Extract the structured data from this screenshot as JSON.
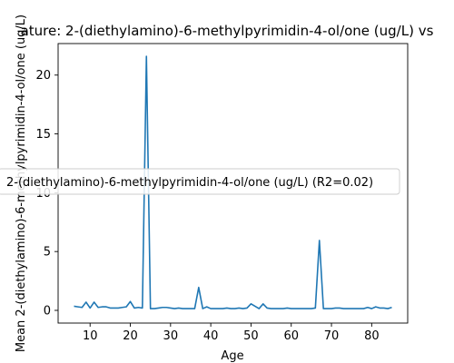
{
  "chart_data": {
    "type": "line",
    "title": "ature: 2-(diethylamino)-6-methylpyrimidin-4-ol/one (ug/L) vs",
    "xlabel": "Age",
    "ylabel": "Mean 2-(diethylamino)-6-methylpyrimidin-4-ol/one (ug/L)",
    "xlim": [
      2.05,
      88.95
    ],
    "ylim": [
      -1.08,
      22.68
    ],
    "xticks": [
      10,
      20,
      30,
      40,
      50,
      60,
      70,
      80
    ],
    "yticks": [
      0,
      5,
      10,
      15,
      20
    ],
    "grid": false,
    "legend_placement": "center-left",
    "series": [
      {
        "name": "2-(diethylamino)-6-methylpyrimidin-4-ol/one (ug/L) (R2=0.02)",
        "color": "#1f77b4",
        "x": [
          6,
          7,
          8,
          9,
          10,
          11,
          12,
          13,
          14,
          15,
          16,
          17,
          18,
          19,
          20,
          21,
          22,
          23,
          24,
          25,
          26,
          27,
          28,
          29,
          30,
          31,
          32,
          33,
          34,
          35,
          36,
          37,
          38,
          39,
          40,
          41,
          42,
          43,
          44,
          45,
          46,
          47,
          48,
          49,
          50,
          51,
          52,
          53,
          54,
          55,
          56,
          57,
          58,
          59,
          60,
          61,
          62,
          63,
          64,
          65,
          66,
          67,
          68,
          69,
          70,
          71,
          72,
          73,
          74,
          75,
          76,
          77,
          78,
          79,
          80,
          81,
          82,
          83,
          84,
          85
        ],
        "y": [
          0.35,
          0.3,
          0.25,
          0.7,
          0.2,
          0.7,
          0.25,
          0.3,
          0.3,
          0.2,
          0.2,
          0.2,
          0.25,
          0.3,
          0.75,
          0.2,
          0.25,
          0.2,
          21.6,
          0.15,
          0.15,
          0.2,
          0.25,
          0.25,
          0.2,
          0.15,
          0.2,
          0.15,
          0.15,
          0.15,
          0.15,
          1.95,
          0.15,
          0.3,
          0.15,
          0.15,
          0.15,
          0.15,
          0.2,
          0.15,
          0.15,
          0.2,
          0.15,
          0.2,
          0.55,
          0.35,
          0.15,
          0.55,
          0.2,
          0.15,
          0.15,
          0.15,
          0.15,
          0.2,
          0.15,
          0.15,
          0.15,
          0.15,
          0.15,
          0.15,
          0.2,
          5.95,
          0.15,
          0.15,
          0.15,
          0.2,
          0.2,
          0.15,
          0.15,
          0.15,
          0.15,
          0.15,
          0.15,
          0.25,
          0.15,
          0.3,
          0.2,
          0.2,
          0.15,
          0.25
        ]
      }
    ]
  }
}
